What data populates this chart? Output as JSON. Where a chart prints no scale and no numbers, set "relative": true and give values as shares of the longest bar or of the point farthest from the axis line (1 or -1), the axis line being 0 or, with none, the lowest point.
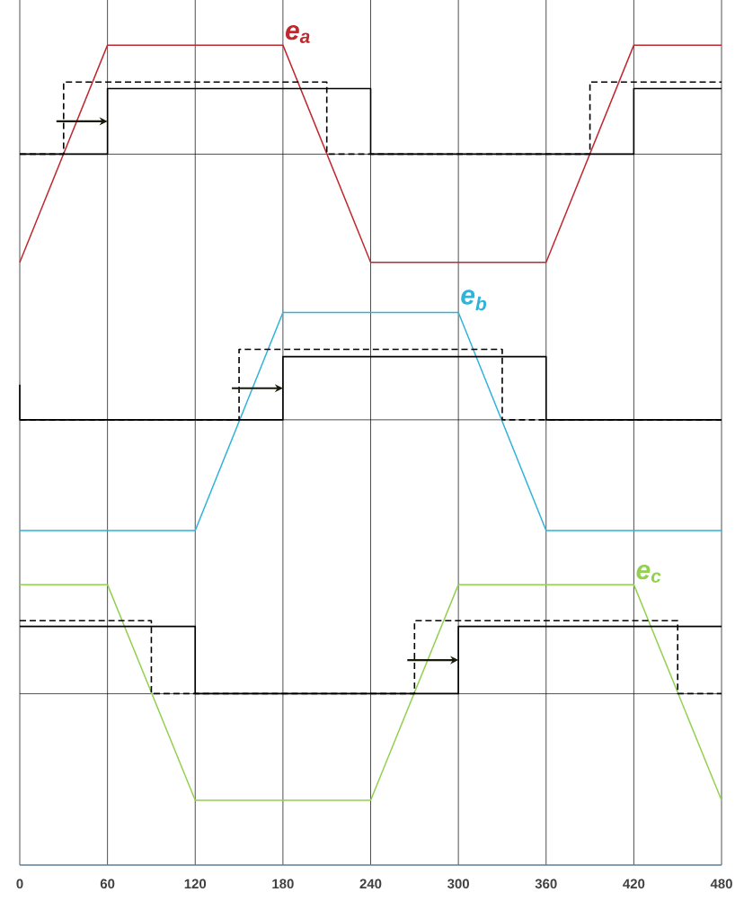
{
  "chart_data": {
    "type": "line",
    "relative": true,
    "xlim": [
      0,
      480
    ],
    "xticks": [
      0,
      60,
      120,
      180,
      240,
      300,
      360,
      420,
      480
    ],
    "grid": "x",
    "tick_labels": "x",
    "ref_lines": [
      {
        "axis": "y",
        "value": 0.867,
        "color": "#000000"
      },
      {
        "axis": "y",
        "value": 0.543,
        "color": "#000000"
      },
      {
        "axis": "y",
        "value": 0.209,
        "color": "#000000"
      }
    ],
    "series": [
      {
        "name": "e$_{a}$",
        "color": "#c0282f",
        "x": [
          0,
          60,
          180,
          240,
          360,
          420,
          480
        ],
        "values": [
          0.735,
          1.0,
          1.0,
          0.735,
          0.735,
          1.0,
          1.0
        ]
      },
      {
        "type": "step",
        "color": "#000000",
        "line_style": "solid",
        "x": [
          0,
          60,
          240,
          420,
          480
        ],
        "values": [
          0.867,
          0.947,
          0.867,
          0.947,
          0.947
        ]
      },
      {
        "type": "step",
        "color": "#000000",
        "line_style": "dashed",
        "x": [
          0,
          30,
          210,
          390,
          480
        ],
        "values": [
          0.867,
          0.955,
          0.867,
          0.955,
          0.955
        ]
      },
      {
        "name": "e$_{b}$",
        "color": "#2eb3d9",
        "x": [
          0,
          120,
          180,
          300,
          360,
          480
        ],
        "values": [
          0.408,
          0.408,
          0.674,
          0.674,
          0.408,
          0.408
        ]
      },
      {
        "type": "step",
        "color": "#000000",
        "line_style": "solid",
        "x": [
          0,
          0,
          180,
          360,
          480
        ],
        "values": [
          0.586,
          0.543,
          0.62,
          0.543,
          0.543
        ]
      },
      {
        "type": "step",
        "color": "#000000",
        "line_style": "dashed",
        "x": [
          0,
          150,
          330,
          480
        ],
        "values": [
          0.543,
          0.629,
          0.543,
          0.543
        ]
      },
      {
        "name": "e$_{c}$",
        "color": "#92d050",
        "x": [
          0,
          60,
          120,
          240,
          300,
          420,
          480
        ],
        "values": [
          0.342,
          0.342,
          0.079,
          0.079,
          0.342,
          0.342,
          0.079
        ]
      },
      {
        "type": "step",
        "color": "#000000",
        "line_style": "solid",
        "x": [
          0,
          120,
          300,
          480
        ],
        "values": [
          0.291,
          0.209,
          0.291,
          0.291
        ]
      },
      {
        "type": "step",
        "color": "#000000",
        "line_style": "dashed",
        "x": [
          0,
          90,
          270,
          450,
          480
        ],
        "values": [
          0.298,
          0.209,
          0.298,
          0.209,
          0.209
        ]
      }
    ]
  }
}
